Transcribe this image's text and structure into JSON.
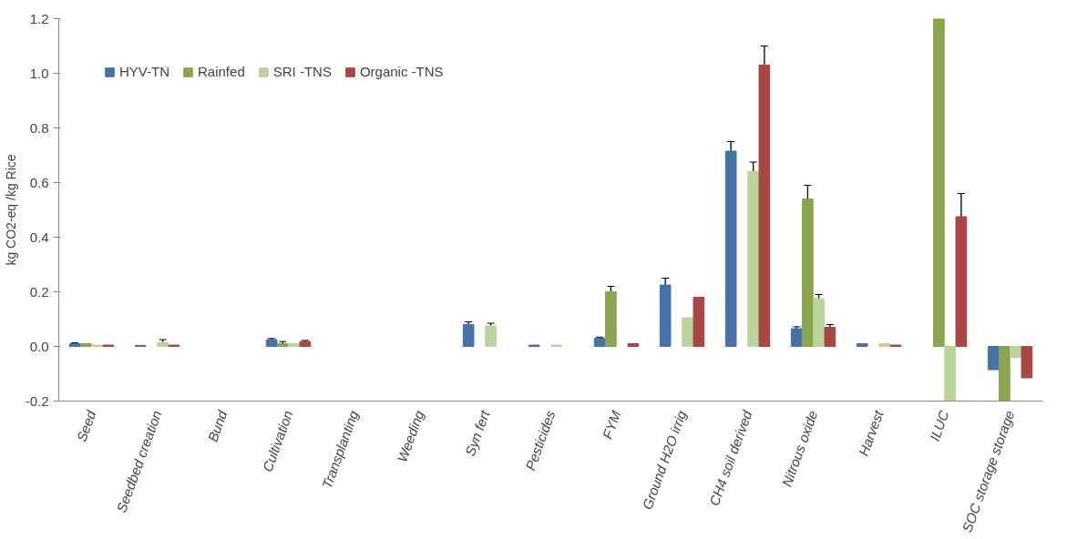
{
  "chart_data": {
    "type": "bar",
    "ylabel": "kg CO2-eq /kg Rice",
    "categories": [
      "Seed",
      "Seedbed creation",
      "Bund",
      "Cultivation",
      "Transplanting",
      "Weeding",
      "Syn fert",
      "Pesticides",
      "FYM",
      "Ground H2O irrig",
      "CH4 soil derived",
      "Nitrous oxide",
      "Harvest",
      "ILUC",
      "SOC storage storage"
    ],
    "series": [
      {
        "name": "HYV-TN",
        "color": "#4572a7",
        "values": [
          0.01,
          0.004,
          null,
          0.025,
          null,
          null,
          0.08,
          0.005,
          0.03,
          0.225,
          0.715,
          0.065,
          0.01,
          null,
          -0.085
        ],
        "errors": [
          0.003,
          null,
          null,
          0.004,
          null,
          null,
          0.01,
          null,
          0.004,
          0.025,
          0.035,
          0.007,
          null,
          null,
          null
        ]
      },
      {
        "name": "Rainfed",
        "color": "#89a54e",
        "values": [
          0.01,
          null,
          null,
          0.01,
          null,
          null,
          null,
          null,
          0.2,
          null,
          null,
          0.54,
          null,
          1.2,
          -0.2
        ],
        "errors": [
          null,
          null,
          null,
          0.008,
          null,
          null,
          null,
          null,
          0.02,
          null,
          null,
          0.05,
          null,
          null,
          null
        ]
      },
      {
        "name": "SRI -TNS",
        "color": "#bcd39b",
        "values": [
          0.005,
          0.015,
          null,
          0.01,
          null,
          null,
          0.075,
          0.005,
          null,
          0.105,
          0.64,
          0.175,
          0.01,
          -0.2,
          -0.04
        ],
        "errors": [
          null,
          0.01,
          null,
          null,
          null,
          null,
          0.01,
          null,
          null,
          null,
          0.035,
          0.015,
          null,
          null,
          null
        ]
      },
      {
        "name": "Organic -TNS",
        "color": "#aa4643",
        "values": [
          0.005,
          0.005,
          null,
          0.018,
          null,
          null,
          null,
          null,
          0.01,
          0.18,
          1.03,
          0.07,
          0.005,
          0.475,
          -0.115
        ],
        "errors": [
          null,
          null,
          null,
          0.004,
          null,
          null,
          null,
          null,
          null,
          null,
          0.07,
          0.01,
          null,
          0.085,
          null
        ]
      }
    ],
    "ylim": [
      -0.2,
      1.2
    ],
    "yticks": [
      {
        "value": -0.2,
        "label": "-0.2"
      },
      {
        "value": 0,
        "label": "0.0"
      },
      {
        "value": 0.2,
        "label": "0.2"
      },
      {
        "value": 0.4,
        "label": "0.4"
      },
      {
        "value": 0.6,
        "label": "0.6"
      },
      {
        "value": 0.8,
        "label": "0.8"
      },
      {
        "value": 1.0,
        "label": "1.0"
      },
      {
        "value": 1.2,
        "label": "1.2"
      }
    ],
    "legend": "top left"
  }
}
